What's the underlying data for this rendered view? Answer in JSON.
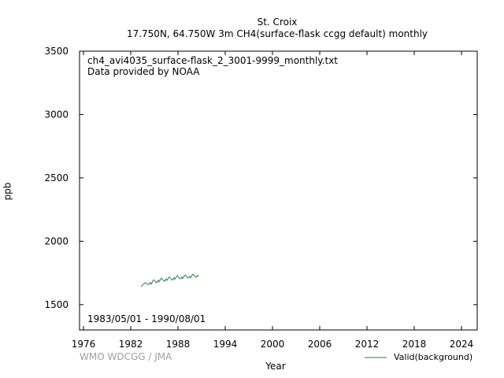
{
  "header": {
    "station": "St. Croix",
    "subtitle": "17.750N, 64.750W 3m    CH4(surface-flask ccgg default) monthly"
  },
  "annotations": {
    "filename": "ch4_avi4035_surface-flask_2_3001-9999_monthly.txt",
    "provider": "Data provided by NOAA",
    "period": "1983/05/01 - 1990/08/01"
  },
  "credit": "WMO WDCGG / JMA",
  "colors": {
    "series": "#2e7d4f",
    "axis": "#000000",
    "credit": "#a0a0a0"
  },
  "chart_data": {
    "type": "line",
    "xlabel": "Year",
    "ylabel": "ppb",
    "xlim": [
      1975.5,
      2026
    ],
    "ylim": [
      1300,
      3500
    ],
    "xticks": [
      1976,
      1982,
      1988,
      1994,
      2000,
      2006,
      2012,
      2018,
      2024
    ],
    "yticks": [
      1500,
      2000,
      2500,
      3000,
      3500
    ],
    "grid": false,
    "legend_position": "bottom-right",
    "series": [
      {
        "name": "Valid(background)",
        "x": [
          1983.33,
          1983.42,
          1983.5,
          1983.58,
          1983.67,
          1983.75,
          1983.83,
          1983.92,
          1984.0,
          1984.08,
          1984.17,
          1984.25,
          1984.33,
          1984.42,
          1984.5,
          1984.58,
          1984.67,
          1984.75,
          1984.83,
          1984.92,
          1985.0,
          1985.08,
          1985.17,
          1985.25,
          1985.33,
          1985.42,
          1985.5,
          1985.58,
          1985.67,
          1985.75,
          1985.83,
          1985.92,
          1986.0,
          1986.08,
          1986.17,
          1986.25,
          1986.33,
          1986.42,
          1986.5,
          1986.58,
          1986.67,
          1986.75,
          1986.83,
          1986.92,
          1987.0,
          1987.08,
          1987.17,
          1987.25,
          1987.33,
          1987.42,
          1987.5,
          1987.58,
          1987.67,
          1987.75,
          1987.83,
          1987.92,
          1988.0,
          1988.08,
          1988.17,
          1988.25,
          1988.33,
          1988.42,
          1988.5,
          1988.58,
          1988.67,
          1988.75,
          1988.83,
          1988.92,
          1989.0,
          1989.08,
          1989.17,
          1989.25,
          1989.33,
          1989.42,
          1989.5,
          1989.58,
          1989.67,
          1989.75,
          1989.83,
          1989.92,
          1990.0,
          1990.08,
          1990.17,
          1990.25,
          1990.33,
          1990.42,
          1990.5,
          1990.58
        ],
        "y": [
          1640,
          1648,
          1655,
          1660,
          1665,
          1668,
          1672,
          1670,
          1668,
          1664,
          1660,
          1658,
          1662,
          1670,
          1675,
          1662,
          1668,
          1680,
          1690,
          1695,
          1690,
          1684,
          1678,
          1672,
          1676,
          1686,
          1692,
          1680,
          1686,
          1698,
          1705,
          1708,
          1702,
          1696,
          1690,
          1684,
          1688,
          1696,
          1702,
          1692,
          1698,
          1708,
          1716,
          1718,
          1712,
          1706,
          1700,
          1694,
          1698,
          1706,
          1712,
          1700,
          1706,
          1716,
          1724,
          1728,
          1722,
          1716,
          1710,
          1704,
          1706,
          1712,
          1718,
          1706,
          1712,
          1722,
          1730,
          1734,
          1728,
          1722,
          1716,
          1710,
          1712,
          1718,
          1724,
          1712,
          1718,
          1728,
          1736,
          1740,
          1734,
          1728,
          1722,
          1716,
          1720,
          1726,
          1732,
          1722
        ]
      }
    ]
  }
}
